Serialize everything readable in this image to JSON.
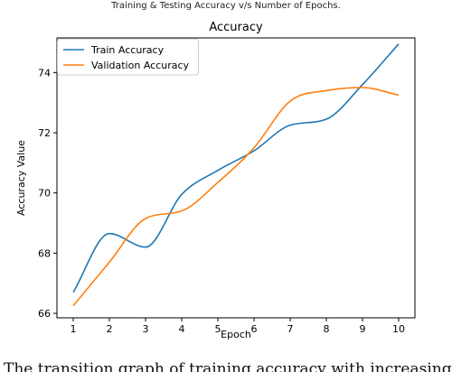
{
  "figure_title": "Training & Testing Accuracy v/s Number of Epochs.",
  "caption": "The transition graph of training accuracy with increasing",
  "colors": {
    "train": "#1f77b4",
    "validation": "#ff7f0e",
    "axis": "#000000"
  },
  "chart_data": {
    "type": "line",
    "title": "Accuracy",
    "xlabel": "Epoch",
    "ylabel": "Accuracy Value",
    "x": [
      1,
      2,
      3,
      4,
      5,
      6,
      7,
      8,
      9,
      10
    ],
    "xticks": [
      "1",
      "2",
      "3",
      "4",
      "5",
      "6",
      "7",
      "8",
      "9",
      "10"
    ],
    "yticks": [
      "66",
      "68",
      "70",
      "72",
      "74"
    ],
    "xlim": [
      0.55,
      10.45
    ],
    "ylim": [
      65.85,
      75.15
    ],
    "series": [
      {
        "name": "Train Accuracy",
        "values": [
          66.7,
          68.65,
          68.2,
          69.95,
          70.75,
          71.4,
          72.25,
          72.45,
          73.6,
          74.95
        ]
      },
      {
        "name": "Validation Accuracy",
        "values": [
          66.25,
          67.7,
          69.15,
          69.4,
          70.35,
          71.5,
          73.05,
          73.4,
          73.5,
          73.25
        ]
      }
    ],
    "legend": "top-left",
    "grid": false
  }
}
